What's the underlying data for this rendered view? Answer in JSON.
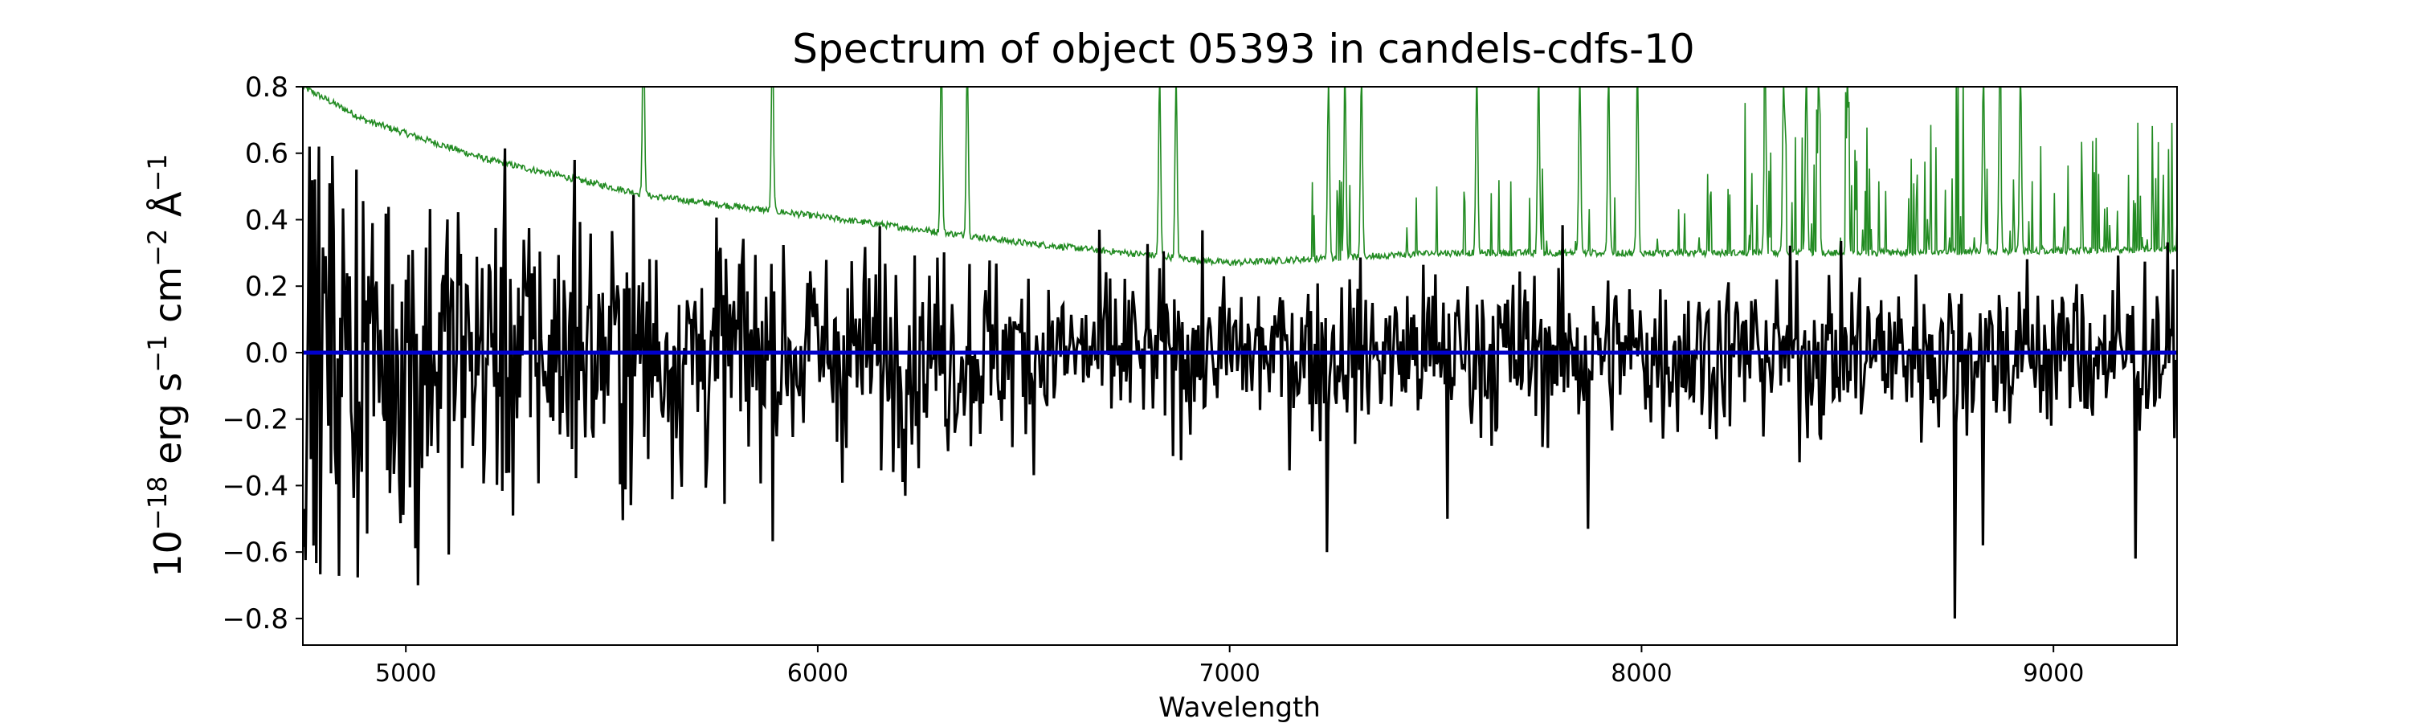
{
  "chart_data": {
    "type": "line",
    "title": "Spectrum of object 05393 in candels-cdfs-10",
    "xlabel": "Wavelength",
    "ylabel_parts": [
      "10",
      "−18",
      " erg s",
      "−1",
      " cm",
      "−2",
      " Å",
      "−1"
    ],
    "xlim": [
      4750,
      9300
    ],
    "ylim": [
      -0.88,
      0.8
    ],
    "xticks": [
      5000,
      6000,
      7000,
      8000,
      9000
    ],
    "yticks": [
      -0.8,
      -0.6,
      -0.4,
      -0.2,
      0.0,
      0.2,
      0.4,
      0.6,
      0.8
    ],
    "ytick_labels": [
      "−0.8",
      "−0.6",
      "−0.4",
      "−0.2",
      "0.0",
      "0.2",
      "0.4",
      "0.6",
      "0.8"
    ],
    "grid": false,
    "series": [
      {
        "role": "flux",
        "color": "#000000",
        "x_range": [
          4750,
          9300
        ],
        "n_points": 1400,
        "typical_range": [
          -0.72,
          0.58
        ],
        "notable_points": [
          [
            5410,
            0.58
          ],
          [
            7235,
            -0.6
          ],
          [
            7530,
            -0.5
          ],
          [
            7870,
            -0.53
          ],
          [
            8760,
            -0.8
          ],
          [
            9200,
            -0.62
          ],
          [
            8830,
            -0.58
          ],
          [
            5030,
            -0.7
          ]
        ]
      },
      {
        "role": "noise",
        "color": "#228B22",
        "x_range": [
          4750,
          9300
        ],
        "continuum": [
          [
            4750,
            0.8
          ],
          [
            4900,
            0.7
          ],
          [
            5200,
            0.58
          ],
          [
            5600,
            0.47
          ],
          [
            6000,
            0.41
          ],
          [
            6500,
            0.33
          ],
          [
            7000,
            0.27
          ],
          [
            7500,
            0.3
          ],
          [
            8000,
            0.3
          ],
          [
            8500,
            0.3
          ],
          [
            9300,
            0.31
          ]
        ],
        "sky_lines": [
          5577,
          5890,
          6300,
          6363,
          6830,
          6870,
          7240,
          7280,
          7320,
          7600,
          7750,
          7850,
          7920,
          7990,
          8300,
          8345,
          8400,
          8430,
          8500,
          8830,
          8870,
          8920
        ]
      },
      {
        "role": "zero",
        "color": "#0000cc",
        "x": [
          4750,
          9300
        ],
        "y": [
          0.0,
          0.0
        ]
      }
    ]
  }
}
